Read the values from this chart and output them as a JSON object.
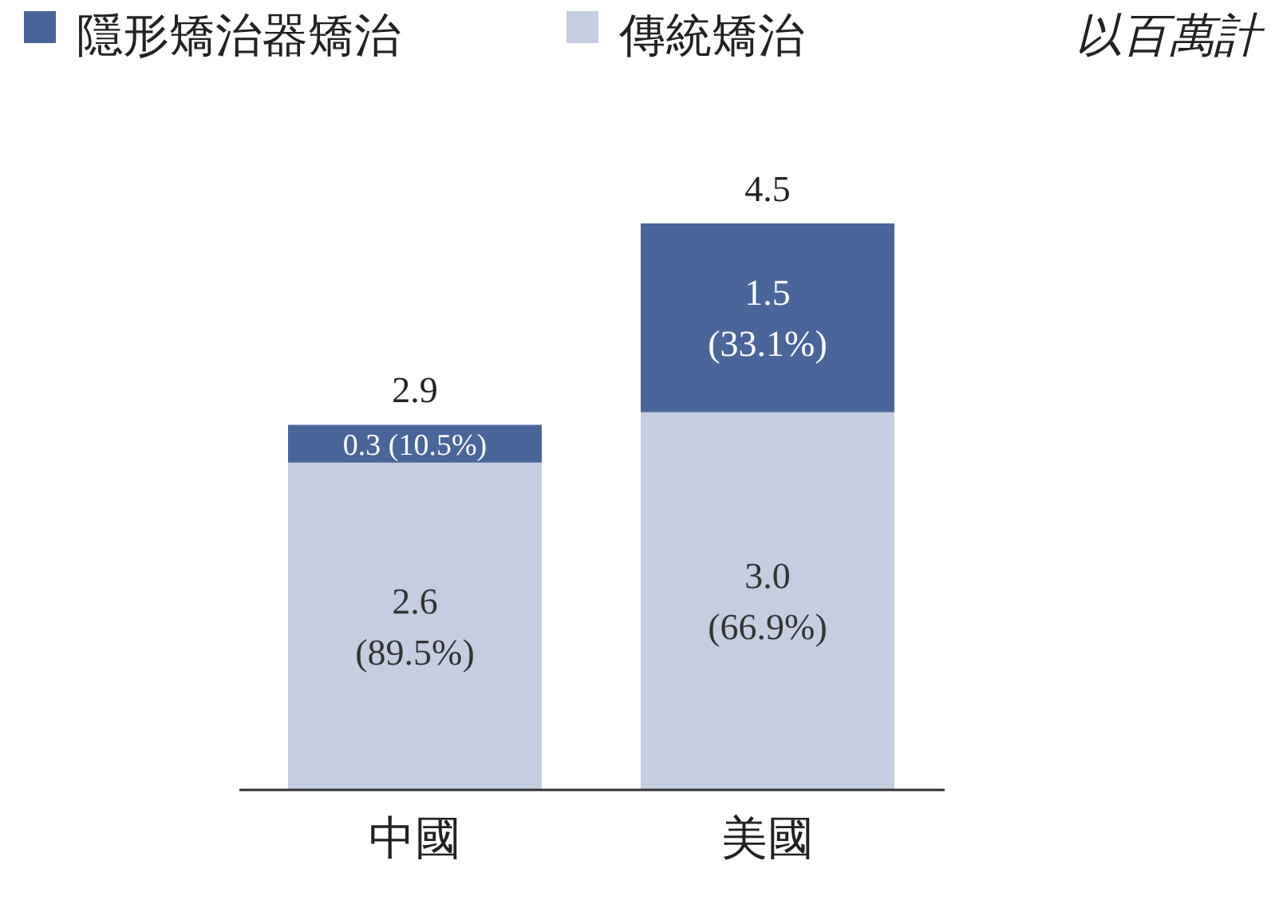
{
  "chart_data": {
    "type": "bar",
    "stacked": true,
    "categories": [
      "中國",
      "美國"
    ],
    "series": [
      {
        "name": "傳統矯治",
        "color": "#c5cde1",
        "values": [
          2.6,
          3.0
        ],
        "value_labels": [
          "2.6 (89.5%)",
          "3.0 (66.9%)"
        ]
      },
      {
        "name": "隱形矯治器矯治",
        "color": "#4a6599",
        "values": [
          0.3,
          1.5
        ],
        "value_labels": [
          "0.3 (10.5%)",
          "1.5 (33.1%)"
        ]
      }
    ],
    "totals": [
      "2.9",
      "4.5"
    ],
    "tick_labels": "x",
    "legend": "top left",
    "annotations": [
      "以百萬計"
    ]
  }
}
